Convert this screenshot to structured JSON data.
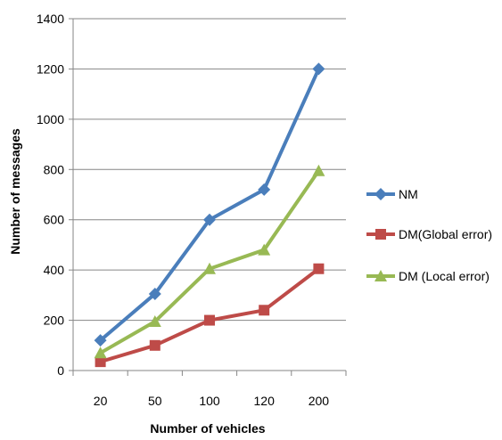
{
  "chart_data": {
    "type": "line",
    "title": "",
    "xlabel": "Number of vehicles",
    "ylabel": "Number of messages",
    "categories": [
      "20",
      "50",
      "100",
      "120",
      "200"
    ],
    "ylim": [
      0,
      1400
    ],
    "yticks": [
      0,
      200,
      400,
      600,
      800,
      1000,
      1200,
      1400
    ],
    "grid": "horizontal",
    "legend_position": "right",
    "series": [
      {
        "name": "NM",
        "values": [
          120,
          305,
          600,
          720,
          1200
        ],
        "color": "#4a7ebb",
        "marker": "diamond"
      },
      {
        "name": "DM(Global error)",
        "values": [
          35,
          100,
          200,
          240,
          405
        ],
        "color": "#be4b48",
        "marker": "square"
      },
      {
        "name": "DM (Local error)",
        "values": [
          70,
          195,
          405,
          480,
          795
        ],
        "color": "#98b954",
        "marker": "triangle"
      }
    ]
  }
}
